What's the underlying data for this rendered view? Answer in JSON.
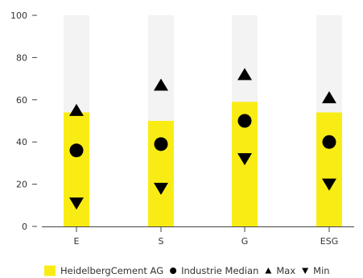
{
  "chart_data": {
    "type": "bar",
    "categories": [
      "E",
      "S",
      "G",
      "ESG"
    ],
    "ylim": [
      0,
      100
    ],
    "yticks": [
      0,
      20,
      40,
      60,
      80,
      100
    ],
    "background_value": 100,
    "series": [
      {
        "name": "HeidelbergCement AG",
        "kind": "bar",
        "values": [
          54,
          50,
          59,
          54
        ]
      },
      {
        "name": "Industrie Median",
        "kind": "marker-circle",
        "values": [
          36,
          39,
          50,
          40
        ]
      },
      {
        "name": "Max",
        "kind": "marker-triangle-up",
        "values": [
          55,
          67,
          72,
          61
        ]
      },
      {
        "name": "Min",
        "kind": "marker-triangle-down",
        "values": [
          11,
          18,
          32,
          20
        ]
      }
    ],
    "legend_position": "bottom-right",
    "grid": false
  },
  "colors": {
    "bar": "#f9ec14",
    "background_bar": "#f3f3f3",
    "marker": "#000000",
    "axis": "#444444",
    "text": "#333333"
  }
}
